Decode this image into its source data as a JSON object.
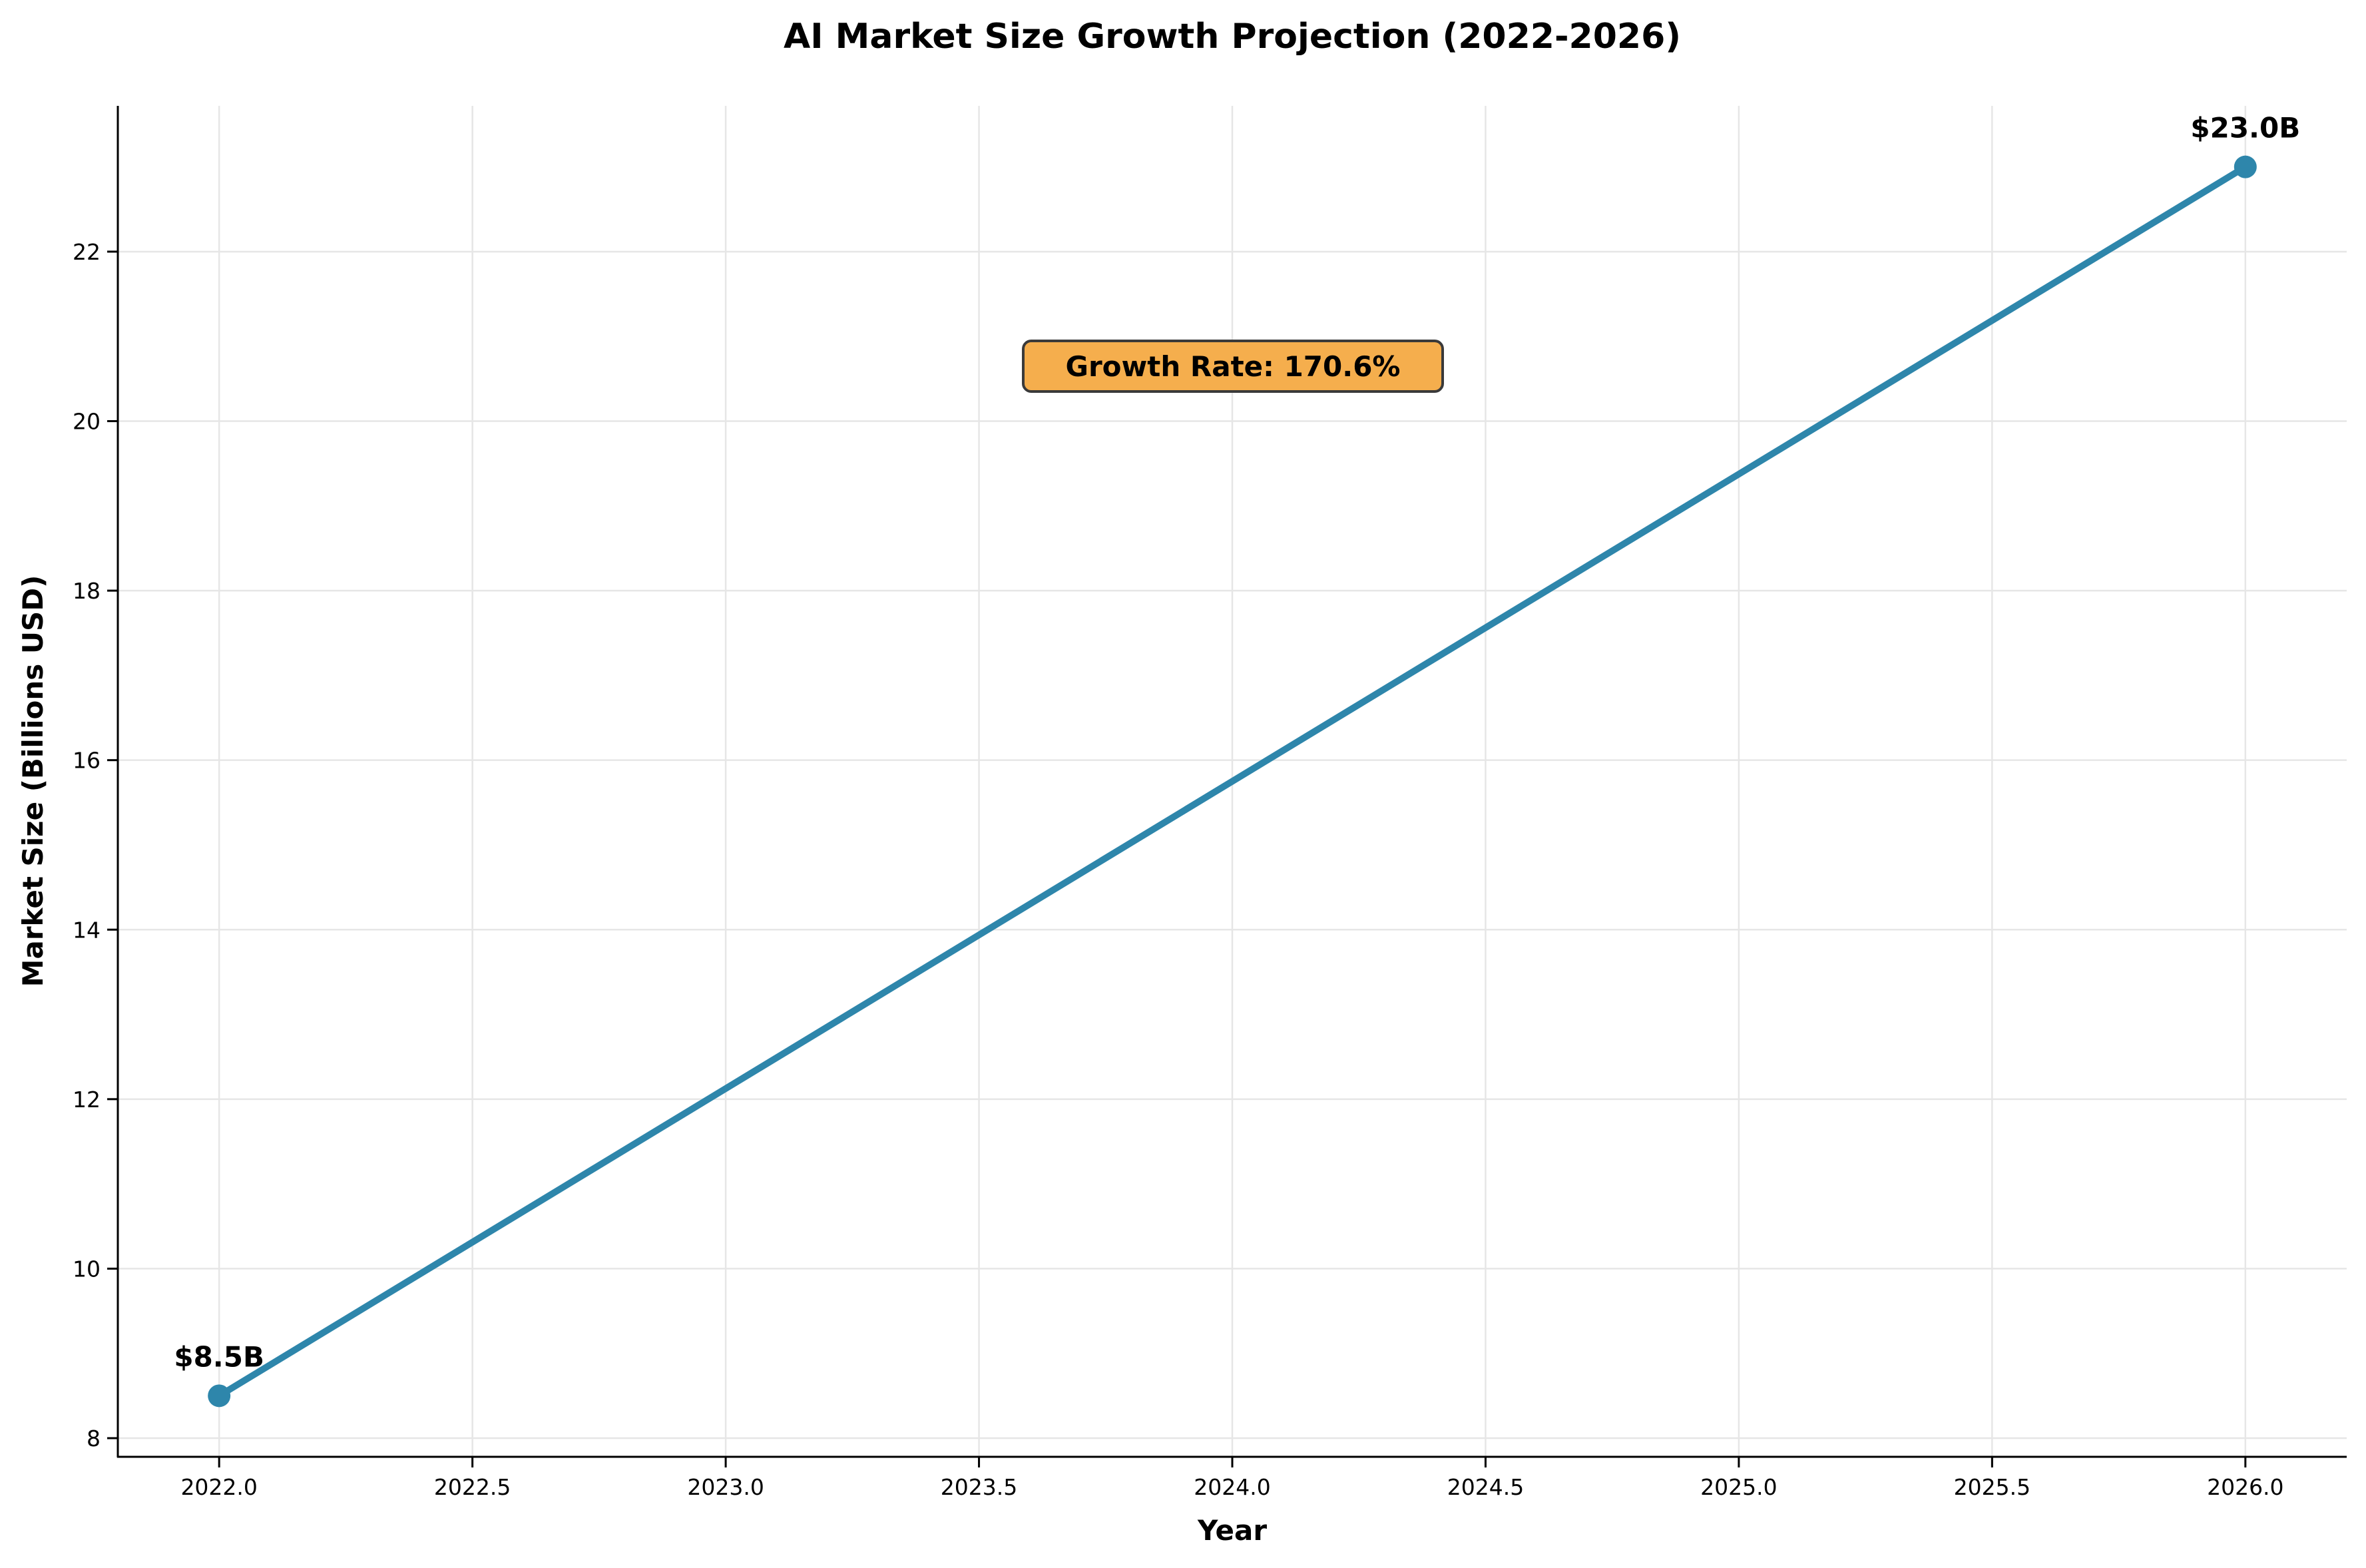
{
  "chart_data": {
    "type": "line",
    "title": "AI Market Size Growth Projection (2022-2026)",
    "xlabel": "Year",
    "ylabel": "Market Size (Billions USD)",
    "x": [
      2022,
      2026
    ],
    "series": [
      {
        "values": [
          8.5,
          23.0
        ]
      }
    ],
    "data_labels": [
      "$8.5B",
      "$23.0B"
    ],
    "annotation": "Growth Rate: 170.6%",
    "xlim": [
      2021.8,
      2026.2
    ],
    "ylim": [
      7.78,
      23.72
    ],
    "xticks": [
      "2022.0",
      "2022.5",
      "2023.0",
      "2023.5",
      "2024.0",
      "2024.5",
      "2025.0",
      "2025.5",
      "2026.0"
    ],
    "yticks": [
      "8",
      "10",
      "12",
      "14",
      "16",
      "18",
      "20",
      "22"
    ],
    "grid": true,
    "legend": "none",
    "colors": {
      "line": "#2E86AB",
      "annotation_box": "#F5AE4D",
      "annotation_border": "#3a3a3a",
      "grid": "#e6e6e6"
    }
  }
}
